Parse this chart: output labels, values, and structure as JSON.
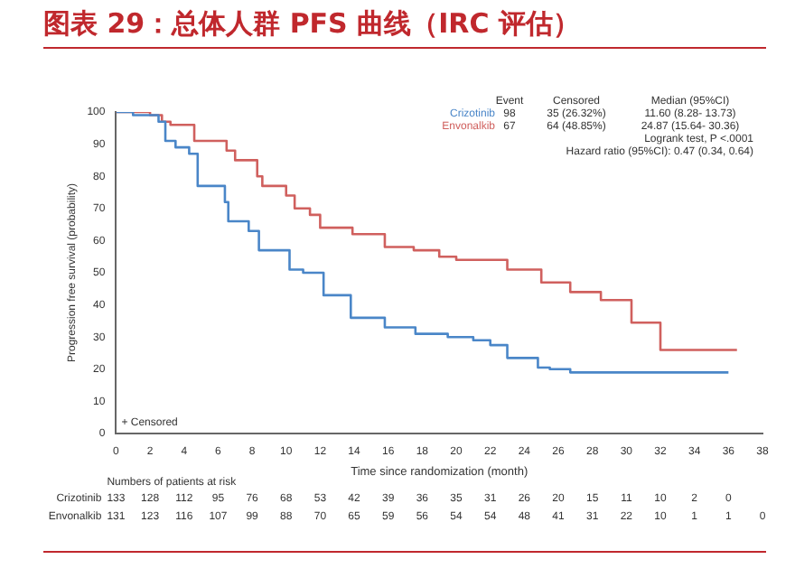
{
  "chart_data": {
    "type": "step",
    "title": "图表 29：总体人群 PFS 曲线（IRC 评估）",
    "xlabel": "Time since randomization (month)",
    "ylabel": "Progression free survival (probability)",
    "xlim": [
      0,
      38
    ],
    "xticks": [
      0,
      2,
      4,
      6,
      8,
      10,
      12,
      14,
      16,
      18,
      20,
      22,
      24,
      26,
      28,
      30,
      32,
      34,
      36,
      38
    ],
    "ylim": [
      0,
      100
    ],
    "yticks": [
      0,
      10,
      20,
      30,
      40,
      50,
      60,
      70,
      80,
      90,
      100
    ],
    "grid": false,
    "legend": false,
    "marker": "none",
    "line_style": "solid",
    "series": [
      {
        "name": "Crizotinib",
        "color": "#4a86c8",
        "x": [
          0,
          1,
          2.5,
          2.9,
          3.5,
          4.3,
          4.8,
          6.4,
          6.6,
          7.8,
          8.4,
          10.2,
          11,
          12.2,
          13.8,
          15.8,
          17.6,
          19.5,
          21,
          22,
          23,
          24.8,
          25.5,
          26.7,
          36
        ],
        "values": [
          100,
          99,
          97,
          91,
          89,
          87,
          77,
          72,
          66,
          63,
          57,
          51,
          50,
          43,
          36,
          33,
          31,
          30,
          29,
          27.5,
          23.5,
          20.5,
          20,
          19,
          19
        ]
      },
      {
        "name": "Envonalkib",
        "color": "#d0605e",
        "x": [
          0,
          2,
          2.7,
          3.2,
          4.6,
          6.5,
          7,
          8.3,
          8.6,
          10,
          10.5,
          11.4,
          12,
          13.9,
          15.8,
          17.5,
          19,
          20,
          23,
          25,
          26.7,
          28.5,
          30.3,
          32,
          36.5
        ],
        "values": [
          100,
          99,
          97,
          96,
          91,
          88,
          85,
          80,
          77,
          74,
          70,
          68,
          64,
          62,
          58,
          57,
          55,
          54,
          51,
          47,
          44,
          41.5,
          34.5,
          26,
          26
        ]
      }
    ],
    "annotations": [
      "Event",
      "Censored",
      "Median (95%CI)",
      "98",
      "35 (26.32%)",
      "11.60 (8.28- 13.73)",
      "67",
      "64 (48.85%)",
      "24.87 (15.64- 30.36)",
      "Logrank test, P <.0001",
      "Hazard ratio (95%CI): 0.47 (0.34, 0.64)",
      "+ Censored",
      "Numbers of patients at risk",
      "133 128 112 95 76 68 53 42 39 36 35 31 26 20 15 11 10 2 0",
      "131 123 116 107 99 88 70 65 59 56 54 54 48 41 31 22 10 1 1 0"
    ]
  }
}
